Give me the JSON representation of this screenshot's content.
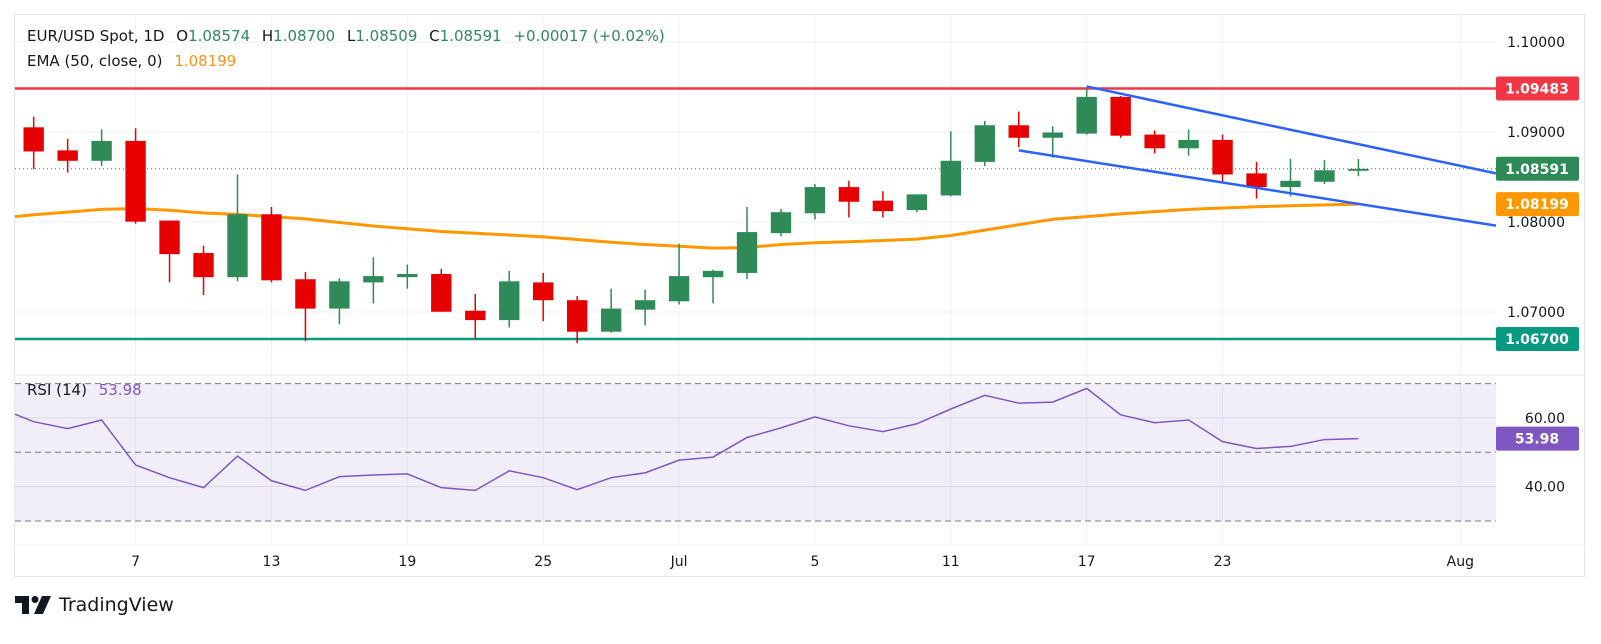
{
  "header": {
    "symbol": "EUR/USD Spot, 1D",
    "open_label": "O",
    "open": "1.08574",
    "high_label": "H",
    "high": "1.08700",
    "low_label": "L",
    "low": "1.08509",
    "close_label": "C",
    "close": "1.08591",
    "change": "+0.00017 (+0.02%)",
    "ema_label": "EMA (50, close, 0)",
    "ema_value": "1.08199"
  },
  "rsi_header": {
    "label": "RSI (14)",
    "value": "53.98"
  },
  "branding": {
    "logo_text": "TradingView"
  },
  "colors": {
    "up": "#2e8b57",
    "down": "#e60000",
    "ema": "#ff9800",
    "resistance": "#f23645",
    "support": "#089981",
    "channel": "#2962ff",
    "rsi": "#7e57c2",
    "rsi_band": "#7e57c2",
    "last_price_tag": "#2e8b57",
    "rsi_tag": "#7e57c2"
  },
  "chart_data": [
    {
      "type": "candlestick",
      "title": "EUR/USD Spot, 1D",
      "ylim": [
        1.063,
        1.103
      ],
      "y_ticks": [
        "1.10000",
        "1.09000",
        "1.08000",
        "1.07000"
      ],
      "y_tick_values": [
        1.1,
        1.09,
        1.08,
        1.07
      ],
      "x_tick_labels": [
        {
          "label": "7",
          "bar": 3
        },
        {
          "label": "13",
          "bar": 7
        },
        {
          "label": "19",
          "bar": 11
        },
        {
          "label": "25",
          "bar": 15
        },
        {
          "label": "Jul",
          "bar": 19
        },
        {
          "label": "5",
          "bar": 23
        },
        {
          "label": "11",
          "bar": 27
        },
        {
          "label": "17",
          "bar": 31
        },
        {
          "label": "23",
          "bar": 35
        },
        {
          "label": "Aug",
          "bar": 42
        }
      ],
      "x_range_bars": [
        -0.55,
        43.05
      ],
      "candles": [
        {
          "o": 1.09052,
          "h": 1.09169,
          "l": 1.08586,
          "c": 1.08784
        },
        {
          "o": 1.08796,
          "h": 1.08924,
          "l": 1.08551,
          "c": 1.0868
        },
        {
          "o": 1.0868,
          "h": 1.09029,
          "l": 1.08621,
          "c": 1.08901
        },
        {
          "o": 1.08901,
          "h": 1.09041,
          "l": 1.07981,
          "c": 1.08004
        },
        {
          "o": 1.08016,
          "h": 1.08016,
          "l": 1.07329,
          "c": 1.07643
        },
        {
          "o": 1.07655,
          "h": 1.07736,
          "l": 1.07189,
          "c": 1.07387
        },
        {
          "o": 1.07387,
          "h": 1.08528,
          "l": 1.07341,
          "c": 1.08086
        },
        {
          "o": 1.08086,
          "h": 1.08167,
          "l": 1.07329,
          "c": 1.07352
        },
        {
          "o": 1.07364,
          "h": 1.07445,
          "l": 1.06677,
          "c": 1.07038
        },
        {
          "o": 1.07038,
          "h": 1.07375,
          "l": 1.06863,
          "c": 1.07341
        },
        {
          "o": 1.07329,
          "h": 1.07608,
          "l": 1.07096,
          "c": 1.07399
        },
        {
          "o": 1.07387,
          "h": 1.07527,
          "l": 1.07259,
          "c": 1.07422
        },
        {
          "o": 1.07422,
          "h": 1.0748,
          "l": 1.07003,
          "c": 1.07003
        },
        {
          "o": 1.07014,
          "h": 1.07201,
          "l": 1.067,
          "c": 1.0691
        },
        {
          "o": 1.0691,
          "h": 1.07457,
          "l": 1.06828,
          "c": 1.07341
        },
        {
          "o": 1.07329,
          "h": 1.07434,
          "l": 1.06898,
          "c": 1.07131
        },
        {
          "o": 1.07131,
          "h": 1.07177,
          "l": 1.06653,
          "c": 1.06781
        },
        {
          "o": 1.06781,
          "h": 1.07259,
          "l": 1.0677,
          "c": 1.07038
        },
        {
          "o": 1.07026,
          "h": 1.07247,
          "l": 1.06851,
          "c": 1.07131
        },
        {
          "o": 1.07119,
          "h": 1.0776,
          "l": 1.07084,
          "c": 1.07399
        },
        {
          "o": 1.07387,
          "h": 1.07469,
          "l": 1.07096,
          "c": 1.07457
        },
        {
          "o": 1.07434,
          "h": 1.08167,
          "l": 1.07364,
          "c": 1.07888
        },
        {
          "o": 1.07876,
          "h": 1.08144,
          "l": 1.07841,
          "c": 1.08109
        },
        {
          "o": 1.08097,
          "h": 1.08423,
          "l": 1.08027,
          "c": 1.08388
        },
        {
          "o": 1.08388,
          "h": 1.08458,
          "l": 1.08051,
          "c": 1.08225
        },
        {
          "o": 1.08237,
          "h": 1.08342,
          "l": 1.08051,
          "c": 1.08121
        },
        {
          "o": 1.08132,
          "h": 1.08307,
          "l": 1.08109,
          "c": 1.08307
        },
        {
          "o": 1.08295,
          "h": 1.09006,
          "l": 1.08284,
          "c": 1.0868
        },
        {
          "o": 1.08668,
          "h": 1.09122,
          "l": 1.08621,
          "c": 1.09075
        },
        {
          "o": 1.09075,
          "h": 1.09227,
          "l": 1.08831,
          "c": 1.08936
        },
        {
          "o": 1.08936,
          "h": 1.09064,
          "l": 1.08715,
          "c": 1.08994
        },
        {
          "o": 1.08982,
          "h": 1.09483,
          "l": 1.08971,
          "c": 1.0939
        },
        {
          "o": 1.0939,
          "h": 1.094,
          "l": 1.08936,
          "c": 1.08959
        },
        {
          "o": 1.08971,
          "h": 1.09017,
          "l": 1.08761,
          "c": 1.08819
        },
        {
          "o": 1.08819,
          "h": 1.09029,
          "l": 1.08738,
          "c": 1.08912
        },
        {
          "o": 1.08912,
          "h": 1.08971,
          "l": 1.08447,
          "c": 1.08528
        },
        {
          "o": 1.0854,
          "h": 1.08668,
          "l": 1.0826,
          "c": 1.08388
        },
        {
          "o": 1.08388,
          "h": 1.08703,
          "l": 1.08284,
          "c": 1.08458
        },
        {
          "o": 1.08447,
          "h": 1.08691,
          "l": 1.08423,
          "c": 1.08575
        },
        {
          "o": 1.08574,
          "h": 1.087,
          "l": 1.08509,
          "c": 1.08591
        }
      ],
      "ema": {
        "name": "EMA (50, close, 0)",
        "start_value": 1.0806,
        "values": [
          1.0808,
          1.0811,
          1.0814,
          1.0815,
          1.0813,
          1.081,
          1.08085,
          1.0806,
          1.08035,
          1.07995,
          1.07955,
          1.07925,
          1.07895,
          1.07875,
          1.07855,
          1.07835,
          1.07805,
          1.07775,
          1.0775,
          1.0773,
          1.0771,
          1.07715,
          1.0775,
          1.0777,
          1.0778,
          1.07795,
          1.0781,
          1.0785,
          1.0791,
          1.0797,
          1.0803,
          1.0806,
          1.0809,
          1.08115,
          1.0814,
          1.08155,
          1.0817,
          1.0818,
          1.0819,
          1.08199
        ]
      },
      "horizontal_lines": [
        {
          "name": "resistance",
          "value": 1.09483,
          "label": "1.09483"
        },
        {
          "name": "support",
          "value": 1.067,
          "label": "1.06700"
        }
      ],
      "last_price": {
        "value": 1.08591,
        "label": "1.08591"
      },
      "ema_tag": {
        "value": 1.08199,
        "label": "1.08199"
      },
      "channel": {
        "upper": [
          {
            "bar": 31,
            "price": 1.09506
          },
          {
            "bar": 43.05,
            "price": 1.0854
          }
        ],
        "lower": [
          {
            "bar": 29,
            "price": 1.08796
          },
          {
            "bar": 43.05,
            "price": 1.0796
          }
        ]
      }
    },
    {
      "type": "line",
      "title": "RSI (14)",
      "ylim": [
        23.0,
        72.5
      ],
      "y_ticks": [
        "60.00",
        "40.00"
      ],
      "y_tick_values": [
        60,
        40
      ],
      "band": {
        "upper": 70,
        "middle": 50,
        "lower": 30
      },
      "start_value": 61.1,
      "values": [
        58.9,
        56.9,
        59.4,
        46.3,
        42.6,
        39.7,
        48.9,
        41.7,
        38.9,
        42.9,
        43.4,
        43.7,
        39.7,
        38.9,
        44.6,
        42.6,
        39.1,
        42.6,
        44.0,
        47.7,
        48.6,
        54.3,
        57.1,
        60.3,
        57.7,
        56.0,
        58.3,
        62.6,
        66.6,
        64.3,
        64.6,
        68.6,
        60.9,
        58.6,
        59.4,
        53.1,
        51.1,
        51.7,
        53.7,
        53.98
      ],
      "last": {
        "value": 53.98,
        "label": "53.98"
      }
    }
  ]
}
